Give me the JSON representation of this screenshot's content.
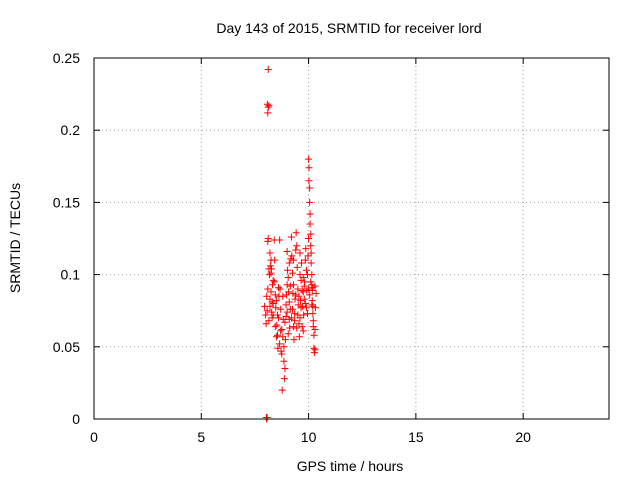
{
  "chart_data": {
    "type": "scatter",
    "title": "Day 143 of 2015, SRMTID for receiver lord",
    "xlabel": "GPS time / hours",
    "ylabel": "SRMTID / TECUs",
    "xlim": [
      0,
      24
    ],
    "ylim": [
      0,
      0.25
    ],
    "xticks": [
      0,
      5,
      10,
      15,
      20
    ],
    "xtick_labels": [
      "0",
      "5",
      "10",
      "15",
      "20"
    ],
    "yticks": [
      0,
      0.05,
      0.1,
      0.15,
      0.2,
      0.25
    ],
    "ytick_labels": [
      "0",
      "0.05",
      "0.1",
      "0.15",
      "0.2",
      "0.25"
    ],
    "grid": true,
    "marker": "+",
    "color": "#ff0000",
    "series": [
      {
        "name": "SRMTID",
        "points": [
          [
            8.03,
            0.001
          ],
          [
            8.05,
            0.0
          ],
          [
            8.07,
            0.001
          ],
          [
            8.12,
            0.242
          ],
          [
            8.08,
            0.218
          ],
          [
            8.12,
            0.216
          ],
          [
            8.15,
            0.217
          ],
          [
            8.1,
            0.212
          ],
          [
            7.95,
            0.078
          ],
          [
            8.0,
            0.072
          ],
          [
            8.02,
            0.066
          ],
          [
            8.05,
            0.085
          ],
          [
            8.07,
            0.075
          ],
          [
            8.1,
            0.09
          ],
          [
            8.12,
            0.125
          ],
          [
            8.15,
            0.104
          ],
          [
            8.18,
            0.1
          ],
          [
            8.2,
            0.083
          ],
          [
            8.22,
            0.106
          ],
          [
            8.25,
            0.101
          ],
          [
            8.27,
            0.104
          ],
          [
            8.3,
            0.07
          ],
          [
            8.32,
            0.093
          ],
          [
            8.35,
            0.096
          ],
          [
            8.1,
            0.123
          ],
          [
            8.2,
            0.115
          ],
          [
            8.25,
            0.11
          ],
          [
            8.3,
            0.081
          ],
          [
            8.15,
            0.068
          ],
          [
            8.2,
            0.078
          ],
          [
            8.28,
            0.074
          ],
          [
            8.35,
            0.08
          ],
          [
            8.4,
            0.124
          ],
          [
            8.42,
            0.11
          ],
          [
            8.45,
            0.086
          ],
          [
            8.47,
            0.077
          ],
          [
            8.5,
            0.057
          ],
          [
            8.52,
            0.065
          ],
          [
            8.55,
            0.072
          ],
          [
            8.57,
            0.049
          ],
          [
            8.6,
            0.07
          ],
          [
            8.62,
            0.085
          ],
          [
            8.65,
            0.124
          ],
          [
            8.67,
            0.09
          ],
          [
            8.7,
            0.061
          ],
          [
            8.72,
            0.047
          ],
          [
            8.75,
            0.045
          ],
          [
            8.77,
            0.02
          ],
          [
            8.8,
            0.057
          ],
          [
            8.82,
            0.069
          ],
          [
            8.85,
            0.04
          ],
          [
            8.87,
            0.028
          ],
          [
            8.9,
            0.035
          ],
          [
            8.92,
            0.055
          ],
          [
            8.95,
            0.079
          ],
          [
            8.97,
            0.086
          ],
          [
            9.0,
            0.093
          ],
          [
            9.02,
            0.103
          ],
          [
            9.05,
            0.098
          ],
          [
            9.07,
            0.088
          ],
          [
            9.1,
            0.069
          ],
          [
            9.12,
            0.063
          ],
          [
            9.15,
            0.076
          ],
          [
            9.17,
            0.111
          ],
          [
            9.2,
            0.126
          ],
          [
            9.22,
            0.113
          ],
          [
            9.25,
            0.101
          ],
          [
            9.27,
            0.087
          ],
          [
            9.3,
            0.064
          ],
          [
            9.32,
            0.055
          ],
          [
            9.35,
            0.073
          ],
          [
            9.37,
            0.083
          ],
          [
            9.4,
            0.117
          ],
          [
            9.42,
            0.129
          ],
          [
            9.45,
            0.12
          ],
          [
            9.47,
            0.105
          ],
          [
            9.5,
            0.09
          ],
          [
            9.52,
            0.079
          ],
          [
            9.55,
            0.066
          ],
          [
            9.57,
            0.057
          ],
          [
            9.6,
            0.07
          ],
          [
            9.62,
            0.082
          ],
          [
            9.65,
            0.096
          ],
          [
            9.67,
            0.108
          ],
          [
            9.7,
            0.089
          ],
          [
            9.72,
            0.078
          ],
          [
            9.75,
            0.061
          ],
          [
            9.77,
            0.072
          ],
          [
            9.8,
            0.083
          ],
          [
            9.82,
            0.095
          ],
          [
            9.85,
            0.11
          ],
          [
            9.87,
            0.118
          ],
          [
            9.9,
            0.103
          ],
          [
            9.92,
            0.089
          ],
          [
            9.95,
            0.1
          ],
          [
            9.97,
            0.113
          ],
          [
            10.0,
            0.125
          ],
          [
            10.0,
            0.18
          ],
          [
            10.02,
            0.174
          ],
          [
            10.02,
            0.165
          ],
          [
            10.05,
            0.16
          ],
          [
            10.05,
            0.15
          ],
          [
            10.07,
            0.142
          ],
          [
            10.07,
            0.135
          ],
          [
            10.1,
            0.128
          ],
          [
            10.1,
            0.12
          ],
          [
            10.12,
            0.115
          ],
          [
            10.12,
            0.108
          ],
          [
            10.15,
            0.1
          ],
          [
            10.15,
            0.093
          ],
          [
            10.17,
            0.089
          ],
          [
            10.17,
            0.082
          ],
          [
            10.2,
            0.078
          ],
          [
            10.2,
            0.073
          ],
          [
            10.22,
            0.068
          ],
          [
            10.22,
            0.064
          ],
          [
            10.25,
            0.058
          ],
          [
            10.25,
            0.049
          ],
          [
            10.27,
            0.046
          ],
          [
            10.3,
            0.048
          ],
          [
            10.3,
            0.062
          ],
          [
            10.32,
            0.077
          ],
          [
            10.35,
            0.087
          ],
          [
            8.4,
            0.095
          ],
          [
            8.5,
            0.082
          ],
          [
            8.6,
            0.091
          ],
          [
            8.7,
            0.076
          ],
          [
            8.8,
            0.085
          ],
          [
            8.9,
            0.067
          ],
          [
            9.0,
            0.074
          ],
          [
            9.1,
            0.081
          ],
          [
            9.2,
            0.07
          ],
          [
            9.3,
            0.093
          ],
          [
            9.4,
            0.086
          ],
          [
            9.5,
            0.072
          ],
          [
            9.6,
            0.1
          ],
          [
            9.7,
            0.064
          ],
          [
            9.8,
            0.092
          ],
          [
            9.9,
            0.077
          ],
          [
            10.0,
            0.09
          ],
          [
            10.1,
            0.095
          ],
          [
            10.2,
            0.091
          ],
          [
            10.3,
            0.092
          ],
          [
            8.45,
            0.064
          ],
          [
            8.55,
            0.058
          ],
          [
            8.65,
            0.052
          ],
          [
            8.75,
            0.062
          ],
          [
            8.85,
            0.05
          ],
          [
            8.95,
            0.071
          ],
          [
            9.05,
            0.059
          ],
          [
            9.15,
            0.092
          ],
          [
            9.25,
            0.076
          ],
          [
            9.35,
            0.068
          ],
          [
            9.45,
            0.063
          ],
          [
            9.55,
            0.085
          ],
          [
            9.65,
            0.077
          ],
          [
            9.75,
            0.088
          ],
          [
            9.85,
            0.08
          ],
          [
            9.95,
            0.073
          ],
          [
            10.05,
            0.086
          ],
          [
            10.15,
            0.079
          ],
          [
            8.25,
            0.088
          ],
          [
            8.35,
            0.072
          ],
          [
            9.0,
            0.116
          ],
          [
            9.1,
            0.108
          ],
          [
            9.3,
            0.11
          ],
          [
            9.6,
            0.115
          ],
          [
            9.75,
            0.098
          ]
        ]
      }
    ]
  }
}
